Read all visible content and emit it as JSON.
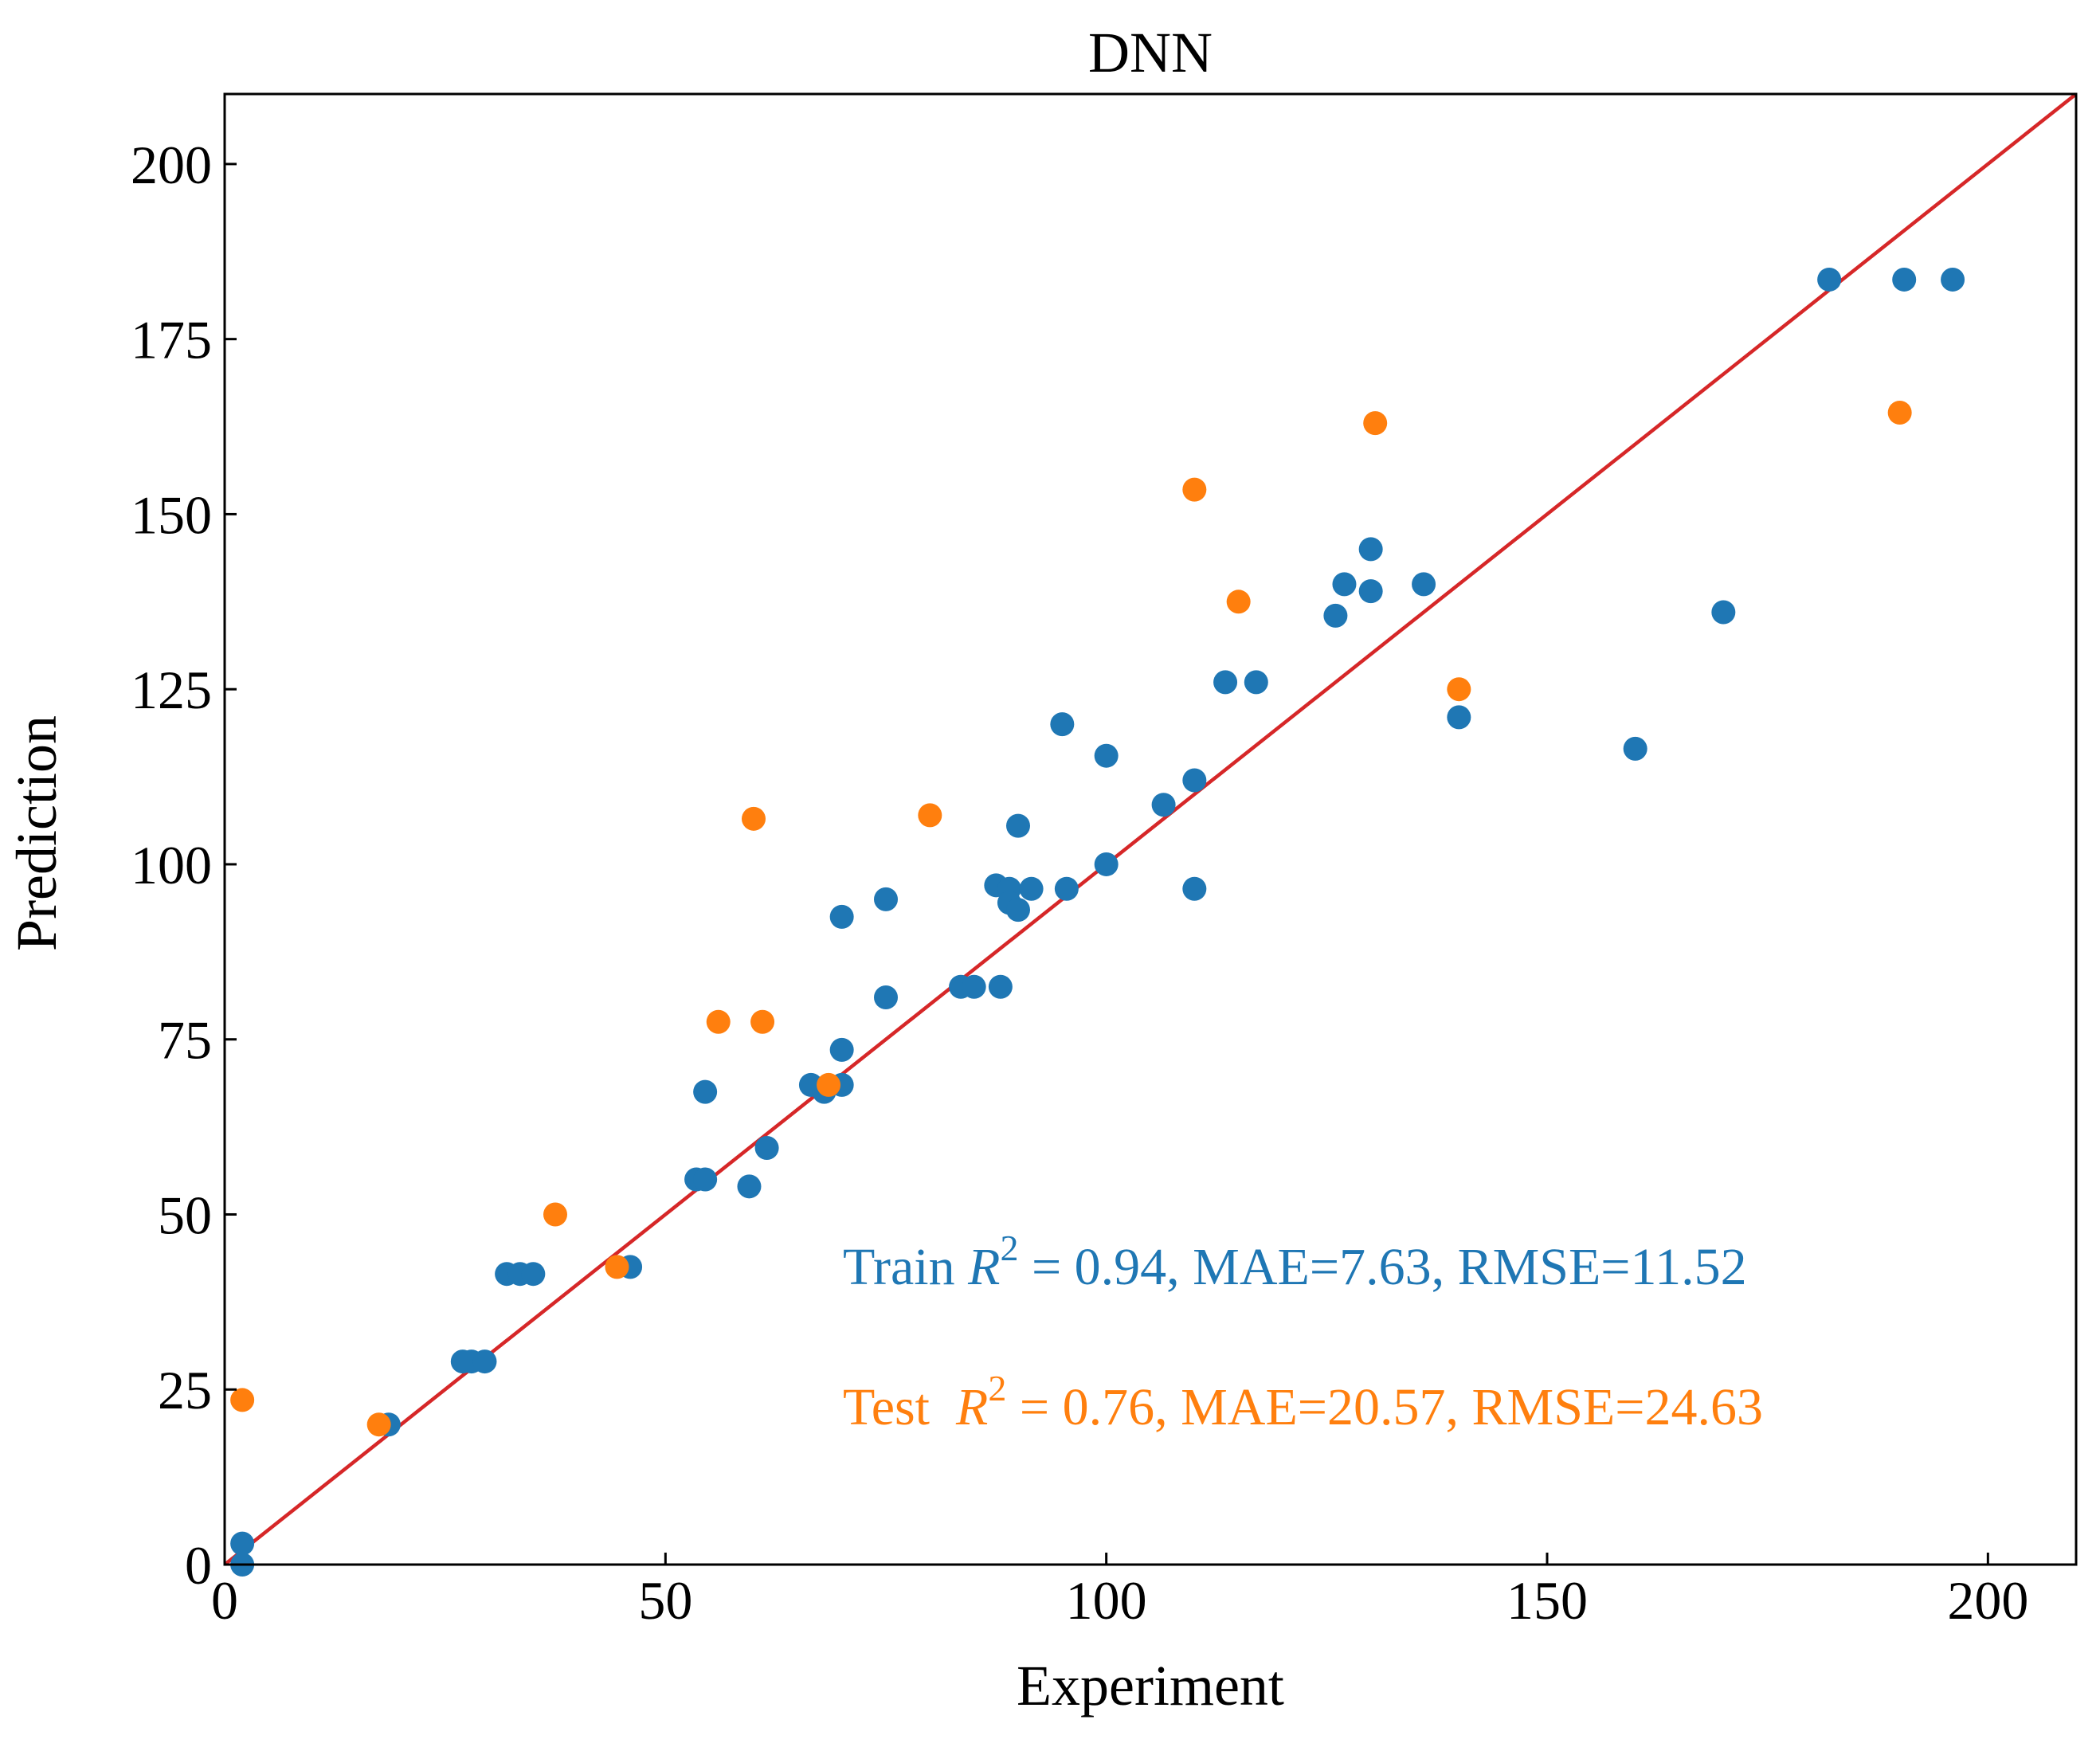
{
  "chart_data": {
    "type": "scatter",
    "title": "DNN",
    "xlabel": "Experiment",
    "ylabel": "Prediction",
    "xlim": [
      0,
      210
    ],
    "ylim": [
      0,
      210
    ],
    "xticks": [
      0,
      50,
      100,
      150,
      200
    ],
    "yticks": [
      0,
      25,
      50,
      75,
      100,
      125,
      150,
      175,
      200
    ],
    "xtick_labels": [
      "0",
      "50",
      "100",
      "150",
      "200"
    ],
    "ytick_labels": [
      "0",
      "25",
      "50",
      "75",
      "100",
      "125",
      "150",
      "175",
      "200"
    ],
    "grid": false,
    "reference_line": {
      "from": [
        0,
        0
      ],
      "to": [
        210,
        210
      ],
      "color": "#d62728"
    },
    "series": [
      {
        "name": "Train",
        "color": "#1f77b4",
        "points": [
          [
            2,
            3
          ],
          [
            2,
            0
          ],
          [
            18.6,
            20
          ],
          [
            27,
            29
          ],
          [
            28,
            29
          ],
          [
            29.5,
            29
          ],
          [
            32,
            41.5
          ],
          [
            33.5,
            41.5
          ],
          [
            35,
            41.5
          ],
          [
            46,
            42.5
          ],
          [
            53.5,
            55
          ],
          [
            54.5,
            55
          ],
          [
            54.5,
            67.5
          ],
          [
            59.5,
            54
          ],
          [
            61.5,
            59.5
          ],
          [
            66.5,
            68.5
          ],
          [
            68,
            67.5
          ],
          [
            70,
            68.5
          ],
          [
            70,
            73.5
          ],
          [
            70,
            92.5
          ],
          [
            75,
            81
          ],
          [
            75,
            95
          ],
          [
            83.5,
            82.5
          ],
          [
            85,
            82.5
          ],
          [
            88,
            82.5
          ],
          [
            87.5,
            97
          ],
          [
            89,
            96.5
          ],
          [
            89,
            94.5
          ],
          [
            90,
            93.5
          ],
          [
            90,
            105.5
          ],
          [
            91.5,
            96.5
          ],
          [
            95,
            120
          ],
          [
            95.5,
            96.5
          ],
          [
            100,
            100
          ],
          [
            100,
            115.5
          ],
          [
            106.5,
            108.5
          ],
          [
            110,
            112
          ],
          [
            110,
            96.5
          ],
          [
            113.5,
            126
          ],
          [
            117,
            126
          ],
          [
            126,
            135.5
          ],
          [
            127,
            140
          ],
          [
            130,
            139
          ],
          [
            130,
            145
          ],
          [
            136,
            140
          ],
          [
            140,
            121
          ],
          [
            160,
            116.5
          ],
          [
            170,
            136
          ],
          [
            182,
            183.5
          ],
          [
            190.5,
            183.5
          ],
          [
            196,
            183.5
          ]
        ]
      },
      {
        "name": "Test",
        "color": "#ff7f0e",
        "points": [
          [
            2,
            23.5
          ],
          [
            17.5,
            20
          ],
          [
            37.5,
            50
          ],
          [
            44.5,
            42.5
          ],
          [
            56,
            77.5
          ],
          [
            60,
            106.5
          ],
          [
            61,
            77.5
          ],
          [
            68.5,
            68.5
          ],
          [
            80,
            107
          ],
          [
            110,
            153.5
          ],
          [
            115,
            137.5
          ],
          [
            130.5,
            163
          ],
          [
            140,
            125
          ],
          [
            190,
            164.5
          ]
        ]
      }
    ],
    "annotations": [
      {
        "series": "Train",
        "label": "Train",
        "r2": "0.94",
        "mae": "7.63",
        "rmse": "11.52",
        "color": "#1f77b4"
      },
      {
        "series": "Test",
        "label": "Test",
        "r2": "0.76",
        "mae": "20.57",
        "rmse": "24.63",
        "color": "#ff7f0e"
      }
    ],
    "text": {
      "r_symbol": "R",
      "sup": "2",
      "eq": " = ",
      "mae_prefix": ", MAE=",
      "rmse_prefix": ", RMSE="
    }
  }
}
